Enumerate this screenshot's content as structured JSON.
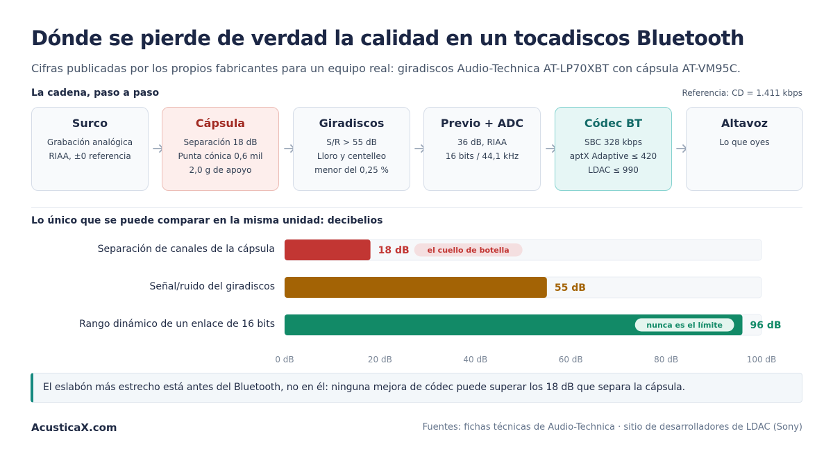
{
  "page": {
    "title": "Dónde se pierde de verdad la calidad en un tocadiscos Bluetooth",
    "subtitle": "Cifras publicadas por los propios fabricantes para un equipo real: giradiscos Audio-Technica AT-LP70XBT con cápsula AT-VM95C.",
    "brand": "AcusticaX.com",
    "sources": "Fuentes: fichas técnicas de Audio-Technica · sitio de desarrolladores de LDAC (Sony)"
  },
  "chain": {
    "label": "La cadena, paso a paso",
    "reference": "Referencia: CD = 1.411 kbps",
    "steps": [
      {
        "title": "Surco",
        "lines": [
          "Grabación analógica",
          "RIAA, ±0 referencia"
        ],
        "style": "normal"
      },
      {
        "title": "Cápsula",
        "lines": [
          "Separación 18 dB",
          "Punta cónica 0,6 mil",
          "2,0 g de apoyo"
        ],
        "style": "warn"
      },
      {
        "title": "Giradiscos",
        "lines": [
          "S/R > 55 dB",
          "Lloro y centelleo",
          "menor del 0,25 %"
        ],
        "style": "normal"
      },
      {
        "title": "Previo + ADC",
        "lines": [
          "36 dB, RIAA",
          "16 bits / 44,1 kHz"
        ],
        "style": "normal"
      },
      {
        "title": "Códec BT",
        "lines": [
          "SBC 328 kbps",
          "aptX Adaptive ≤ 420",
          "LDAC ≤ 990"
        ],
        "style": "bt"
      },
      {
        "title": "Altavoz",
        "lines": [
          "Lo que oyes"
        ],
        "style": "normal"
      }
    ],
    "arrow_icon": "arrow-right-icon",
    "arrow_color": "#9aa6b8"
  },
  "comparison": {
    "label": "Lo único que se puede comparar en la misma unidad: decibelios",
    "callout": "El eslabón más estrecho está antes del Bluetooth, no en él: ninguna mejora de códec puede superar los 18 dB que separa la cápsula."
  },
  "chart_data": {
    "type": "bar",
    "orientation": "horizontal",
    "categories": [
      "Separación de canales de la cápsula",
      "Señal/ruido del giradiscos",
      "Rango dinámico de un enlace de 16 bits"
    ],
    "values": [
      18,
      55,
      96
    ],
    "value_labels": [
      "18 dB",
      "55 dB",
      "96 dB"
    ],
    "annotations": [
      "el cuello de botella",
      "",
      "nunca es el límite"
    ],
    "colors": [
      "#c23633",
      "#a36305",
      "#128a67"
    ],
    "track_color": "#f6f8fa",
    "xlim": [
      0,
      100
    ],
    "xticks": [
      0,
      20,
      40,
      60,
      80,
      100
    ],
    "xtick_labels": [
      "0 dB",
      "20 dB",
      "40 dB",
      "60 dB",
      "80 dB",
      "100 dB"
    ],
    "xlabel": "",
    "ylabel": "",
    "grid": false,
    "legend": "none"
  }
}
